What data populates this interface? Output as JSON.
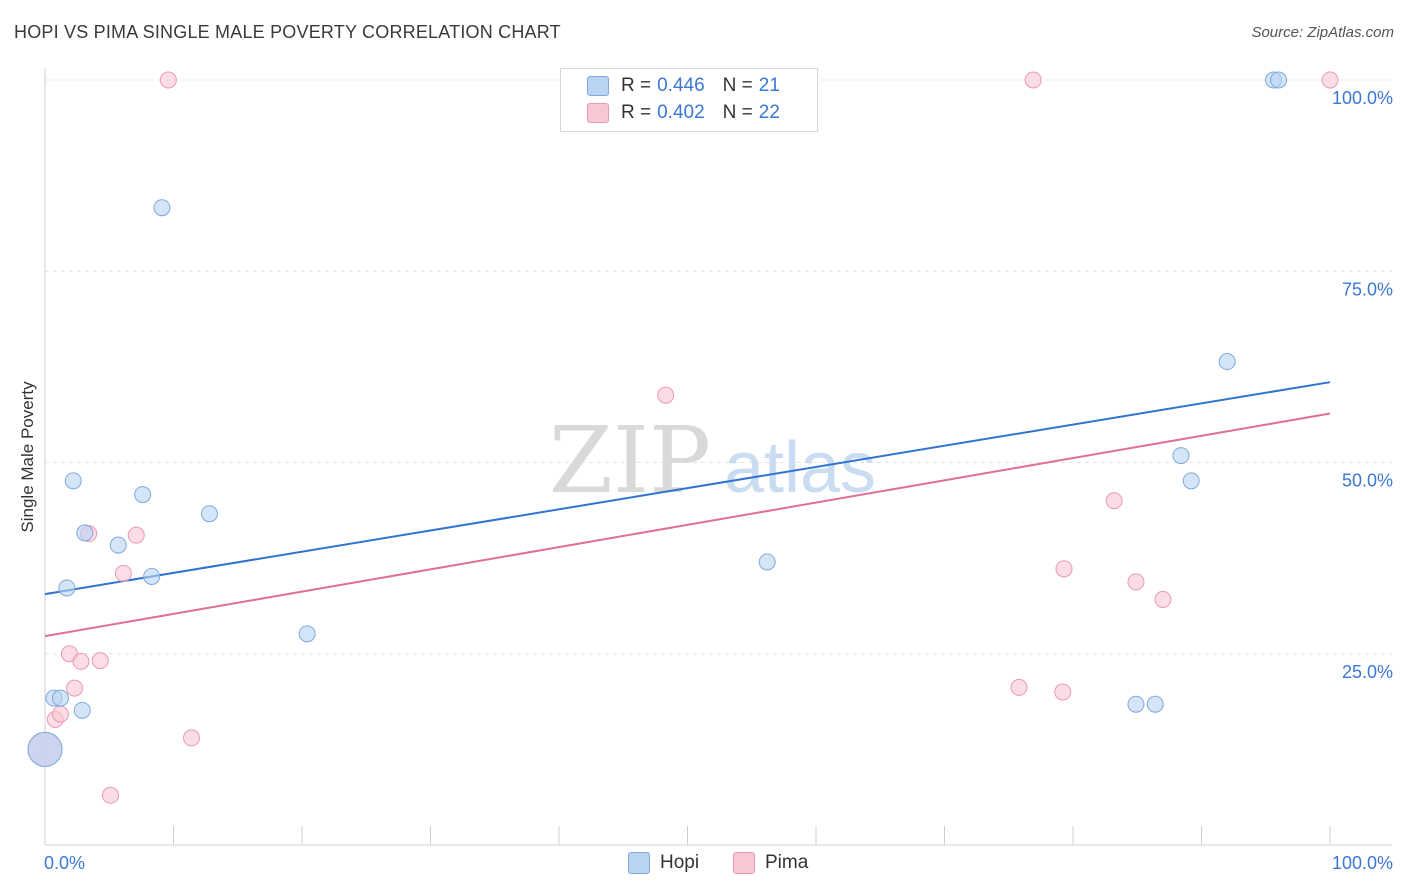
{
  "title": "HOPI VS PIMA SINGLE MALE POVERTY CORRELATION CHART",
  "source": "Source: ZipAtlas.com",
  "watermark": {
    "zip": "ZIP",
    "atlas": "atlas"
  },
  "colors": {
    "hopi_fill": "#b9d4f3",
    "hopi_stroke": "#7fa9dd",
    "hopi_line": "#2f74d0",
    "pima_fill": "#f9c6d4",
    "pima_stroke": "#ec98b1",
    "pima_line": "#e07097",
    "tick_label": "#3b78d4",
    "grid": "#e4e4e4"
  },
  "legend": {
    "rows": [
      {
        "r_label": "R =",
        "r_value": "0.446",
        "n_label": "N =",
        "n_value": "21"
      },
      {
        "r_label": "R =",
        "r_value": "0.402",
        "n_label": "N =",
        "n_value": "22"
      }
    ]
  },
  "bottom_legend": {
    "hopi": "Hopi",
    "pima": "Pima"
  },
  "chart_data": {
    "type": "scatter",
    "title": "HOPI VS PIMA SINGLE MALE POVERTY CORRELATION CHART",
    "xlabel": "",
    "ylabel": "Single Male Poverty",
    "xlim": [
      0,
      100
    ],
    "ylim": [
      0,
      100
    ],
    "x_tick_labels": {
      "left": "0.0%",
      "right": "100.0%"
    },
    "y_ticks": [
      {
        "value": 25,
        "label": "25.0%"
      },
      {
        "value": 50,
        "label": "50.0%"
      },
      {
        "value": 75,
        "label": "75.0%"
      },
      {
        "value": 100,
        "label": "100.0%"
      }
    ],
    "series": [
      {
        "name": "Hopi",
        "R": 0.446,
        "N": 21,
        "trend": {
          "x0": 0,
          "y0": 32.8,
          "x1": 100,
          "y1": 60.5
        },
        "points": [
          {
            "x": 0.0,
            "y": 12.5,
            "big": true
          },
          {
            "x": 0.7,
            "y": 19.2
          },
          {
            "x": 1.2,
            "y": 19.2
          },
          {
            "x": 1.7,
            "y": 33.6
          },
          {
            "x": 2.2,
            "y": 47.6
          },
          {
            "x": 2.9,
            "y": 17.6
          },
          {
            "x": 3.1,
            "y": 40.8
          },
          {
            "x": 5.7,
            "y": 39.2
          },
          {
            "x": 7.6,
            "y": 45.8
          },
          {
            "x": 8.3,
            "y": 35.1
          },
          {
            "x": 9.1,
            "y": 83.3
          },
          {
            "x": 12.8,
            "y": 43.3
          },
          {
            "x": 20.4,
            "y": 27.6
          },
          {
            "x": 56.2,
            "y": 37.0
          },
          {
            "x": 84.9,
            "y": 18.4
          },
          {
            "x": 86.4,
            "y": 18.4
          },
          {
            "x": 88.4,
            "y": 50.9
          },
          {
            "x": 89.2,
            "y": 47.6
          },
          {
            "x": 92.0,
            "y": 63.2
          },
          {
            "x": 95.6,
            "y": 100.0
          },
          {
            "x": 96.0,
            "y": 100.0
          }
        ]
      },
      {
        "name": "Pima",
        "R": 0.402,
        "N": 22,
        "trend": {
          "x0": 0,
          "y0": 27.3,
          "x1": 100,
          "y1": 56.4
        },
        "points": [
          {
            "x": 0.0,
            "y": 12.5,
            "big": true
          },
          {
            "x": 0.8,
            "y": 16.4
          },
          {
            "x": 1.2,
            "y": 17.1
          },
          {
            "x": 1.9,
            "y": 25.0
          },
          {
            "x": 2.3,
            "y": 20.5
          },
          {
            "x": 2.8,
            "y": 24.0
          },
          {
            "x": 3.4,
            "y": 40.7
          },
          {
            "x": 4.3,
            "y": 24.1
          },
          {
            "x": 5.1,
            "y": 6.5
          },
          {
            "x": 6.1,
            "y": 35.5
          },
          {
            "x": 7.1,
            "y": 40.5
          },
          {
            "x": 9.6,
            "y": 100.0
          },
          {
            "x": 11.4,
            "y": 14.0
          },
          {
            "x": 48.3,
            "y": 58.8
          },
          {
            "x": 75.8,
            "y": 20.6
          },
          {
            "x": 76.9,
            "y": 100.0
          },
          {
            "x": 79.2,
            "y": 20.0
          },
          {
            "x": 79.3,
            "y": 36.1
          },
          {
            "x": 83.2,
            "y": 45.0
          },
          {
            "x": 84.9,
            "y": 34.4
          },
          {
            "x": 87.0,
            "y": 32.1
          },
          {
            "x": 100.0,
            "y": 100.0
          }
        ]
      }
    ]
  }
}
